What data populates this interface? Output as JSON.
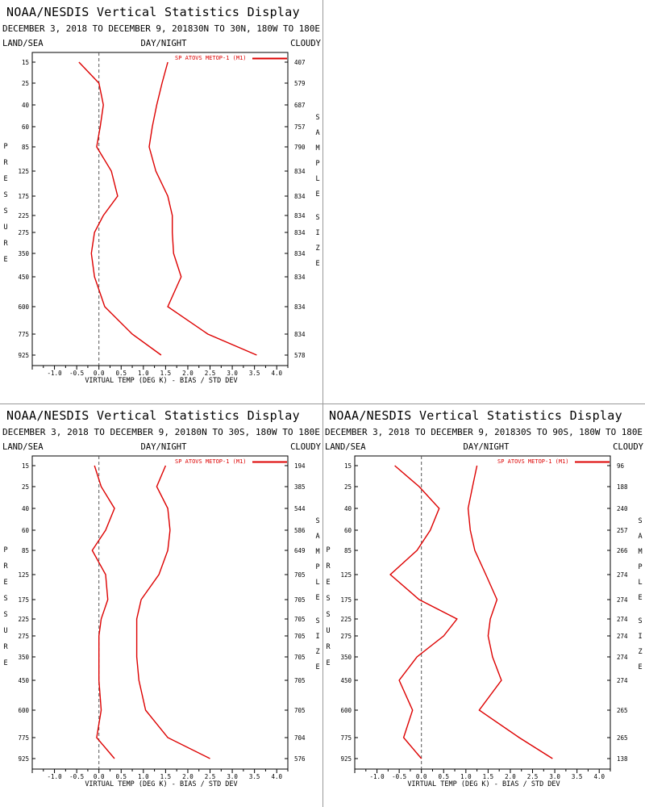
{
  "chart_data": [
    {
      "type": "line",
      "title": "NOAA/NESDIS Vertical Statistics Display",
      "subtitle": "DECEMBER 3, 2018 TO DECEMBER 9, 201830N TO 30N, 180W TO 180E",
      "corner_left": "LAND/SEA",
      "corner_center": "DAY/NIGHT",
      "corner_right": "CLOUDY",
      "xlabel": "VIRTUAL TEMP (DEG K) - BIAS / STD DEV",
      "ylabel_left": "PRESSURE",
      "ylabel_right": "SAMPLE SIZE",
      "legend": "SP ATOVS METOP-1 (M1)",
      "line_color": "#dd0000",
      "xlim": [
        -1.5,
        4.25
      ],
      "x_ticks": [
        "-1.0",
        "-0.5",
        "0.0",
        "0.5",
        "1.0",
        "1.5",
        "2.0",
        "2.5",
        "3.0",
        "3.5",
        "4.0"
      ],
      "pressure": [
        "15",
        "25",
        "40",
        "60",
        "85",
        "125",
        "175",
        "225",
        "275",
        "350",
        "450",
        "600",
        "775",
        "925"
      ],
      "sample_size": [
        "407",
        "579",
        "687",
        "757",
        "790",
        "834",
        "834",
        "834",
        "834",
        "834",
        "834",
        "834",
        "834",
        "578"
      ],
      "series": [
        {
          "values": [
            -0.45,
            0.0,
            0.1,
            0.03,
            -0.05,
            0.28,
            0.42,
            0.1,
            -0.1,
            -0.17,
            -0.1,
            0.13,
            0.75,
            1.4
          ]
        },
        {
          "values": [
            1.55,
            1.42,
            1.3,
            1.2,
            1.13,
            1.28,
            1.55,
            1.65,
            1.65,
            1.68,
            1.85,
            1.55,
            2.45,
            3.55
          ]
        }
      ]
    },
    {
      "type": "line",
      "title": "NOAA/NESDIS Vertical Statistics Display",
      "subtitle": "DECEMBER 3, 2018 TO DECEMBER 9, 20180N TO 30S, 180W TO 180E",
      "corner_left": "LAND/SEA",
      "corner_center": "DAY/NIGHT",
      "corner_right": "CLOUDY",
      "xlabel": "VIRTUAL TEMP (DEG K) - BIAS / STD DEV",
      "ylabel_left": "PRESSURE",
      "ylabel_right": "SAMPLE SIZE",
      "legend": "SP ATOVS METOP-1 (M1)",
      "line_color": "#dd0000",
      "xlim": [
        -1.5,
        4.25
      ],
      "x_ticks": [
        "-1.0",
        "-0.5",
        "0.0",
        "0.5",
        "1.0",
        "1.5",
        "2.0",
        "2.5",
        "3.0",
        "3.5",
        "4.0"
      ],
      "pressure": [
        "15",
        "25",
        "40",
        "60",
        "85",
        "125",
        "175",
        "225",
        "275",
        "350",
        "450",
        "600",
        "775",
        "925"
      ],
      "sample_size": [
        "194",
        "385",
        "544",
        "586",
        "649",
        "705",
        "705",
        "705",
        "705",
        "705",
        "705",
        "705",
        "704",
        "576"
      ],
      "series": [
        {
          "values": [
            -0.1,
            0.05,
            0.35,
            0.15,
            -0.15,
            0.15,
            0.2,
            0.05,
            0.0,
            0.0,
            0.0,
            0.05,
            -0.05,
            0.35
          ]
        },
        {
          "values": [
            1.5,
            1.3,
            1.55,
            1.6,
            1.55,
            1.35,
            0.95,
            0.85,
            0.85,
            0.85,
            0.9,
            1.05,
            1.55,
            2.5
          ]
        }
      ]
    },
    {
      "type": "line",
      "title": "NOAA/NESDIS Vertical Statistics Display",
      "subtitle": "DECEMBER 3, 2018 TO DECEMBER 9, 201830S TO 90S, 180W TO 180E",
      "corner_left": "LAND/SEA",
      "corner_center": "DAY/NIGHT",
      "corner_right": "CLOUDY",
      "xlabel": "VIRTUAL TEMP (DEG K) - BIAS / STD DEV",
      "ylabel_left": "PRESSURE",
      "ylabel_right": "SAMPLE SIZE",
      "legend": "SP ATOVS METOP-1 (M1)",
      "line_color": "#dd0000",
      "xlim": [
        -1.5,
        4.25
      ],
      "x_ticks": [
        "-1.0",
        "-0.5",
        "0.0",
        "0.5",
        "1.0",
        "1.5",
        "2.0",
        "2.5",
        "3.0",
        "3.5",
        "4.0"
      ],
      "pressure": [
        "15",
        "25",
        "40",
        "60",
        "85",
        "125",
        "175",
        "225",
        "275",
        "350",
        "450",
        "600",
        "775",
        "925"
      ],
      "sample_size": [
        "96",
        "188",
        "240",
        "257",
        "266",
        "274",
        "274",
        "274",
        "274",
        "274",
        "274",
        "265",
        "265",
        "138"
      ],
      "series": [
        {
          "values": [
            -0.6,
            -0.05,
            0.4,
            0.2,
            -0.1,
            -0.7,
            -0.05,
            0.8,
            0.5,
            -0.1,
            -0.5,
            -0.2,
            -0.4,
            0.0
          ]
        },
        {
          "values": [
            1.25,
            1.15,
            1.05,
            1.1,
            1.2,
            1.45,
            1.7,
            1.55,
            1.5,
            1.6,
            1.8,
            1.3,
            2.2,
            2.95
          ]
        }
      ]
    }
  ]
}
